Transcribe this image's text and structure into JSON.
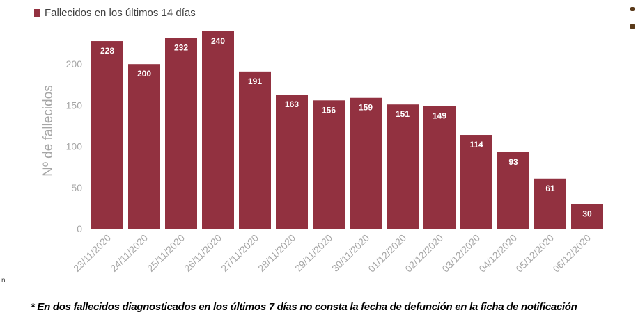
{
  "chart_data": {
    "type": "bar",
    "legend": [
      "Fallecidos en los últimos 14 días"
    ],
    "legend_position": "top-left",
    "ylabel": "Nº de fallecidos",
    "xlabel": "",
    "ylim": [
      0,
      250
    ],
    "yticks": [
      0,
      50,
      100,
      150,
      200
    ],
    "grid": false,
    "colors": {
      "bar": "#923140",
      "axis_text": "#a6a6a6",
      "data_label": "#ffffff"
    },
    "categories": [
      "23/11/2020",
      "24/11/2020",
      "25/11/2020",
      "26/11/2020",
      "27/11/2020",
      "28/11/2020",
      "29/11/2020",
      "30/11/2020",
      "01/12/2020",
      "02/12/2020",
      "03/12/2020",
      "04/12/2020",
      "05/12/2020",
      "06/12/2020"
    ],
    "series": [
      {
        "name": "Fallecidos en los últimos 14 días",
        "values": [
          228,
          200,
          232,
          240,
          191,
          163,
          156,
          159,
          151,
          149,
          114,
          93,
          61,
          30
        ]
      }
    ]
  },
  "footnote": "* En dos fallecidos diagnosticados en los últimos 7 días no consta la fecha de defunción en la ficha de notificación",
  "edge_fragment": "n"
}
